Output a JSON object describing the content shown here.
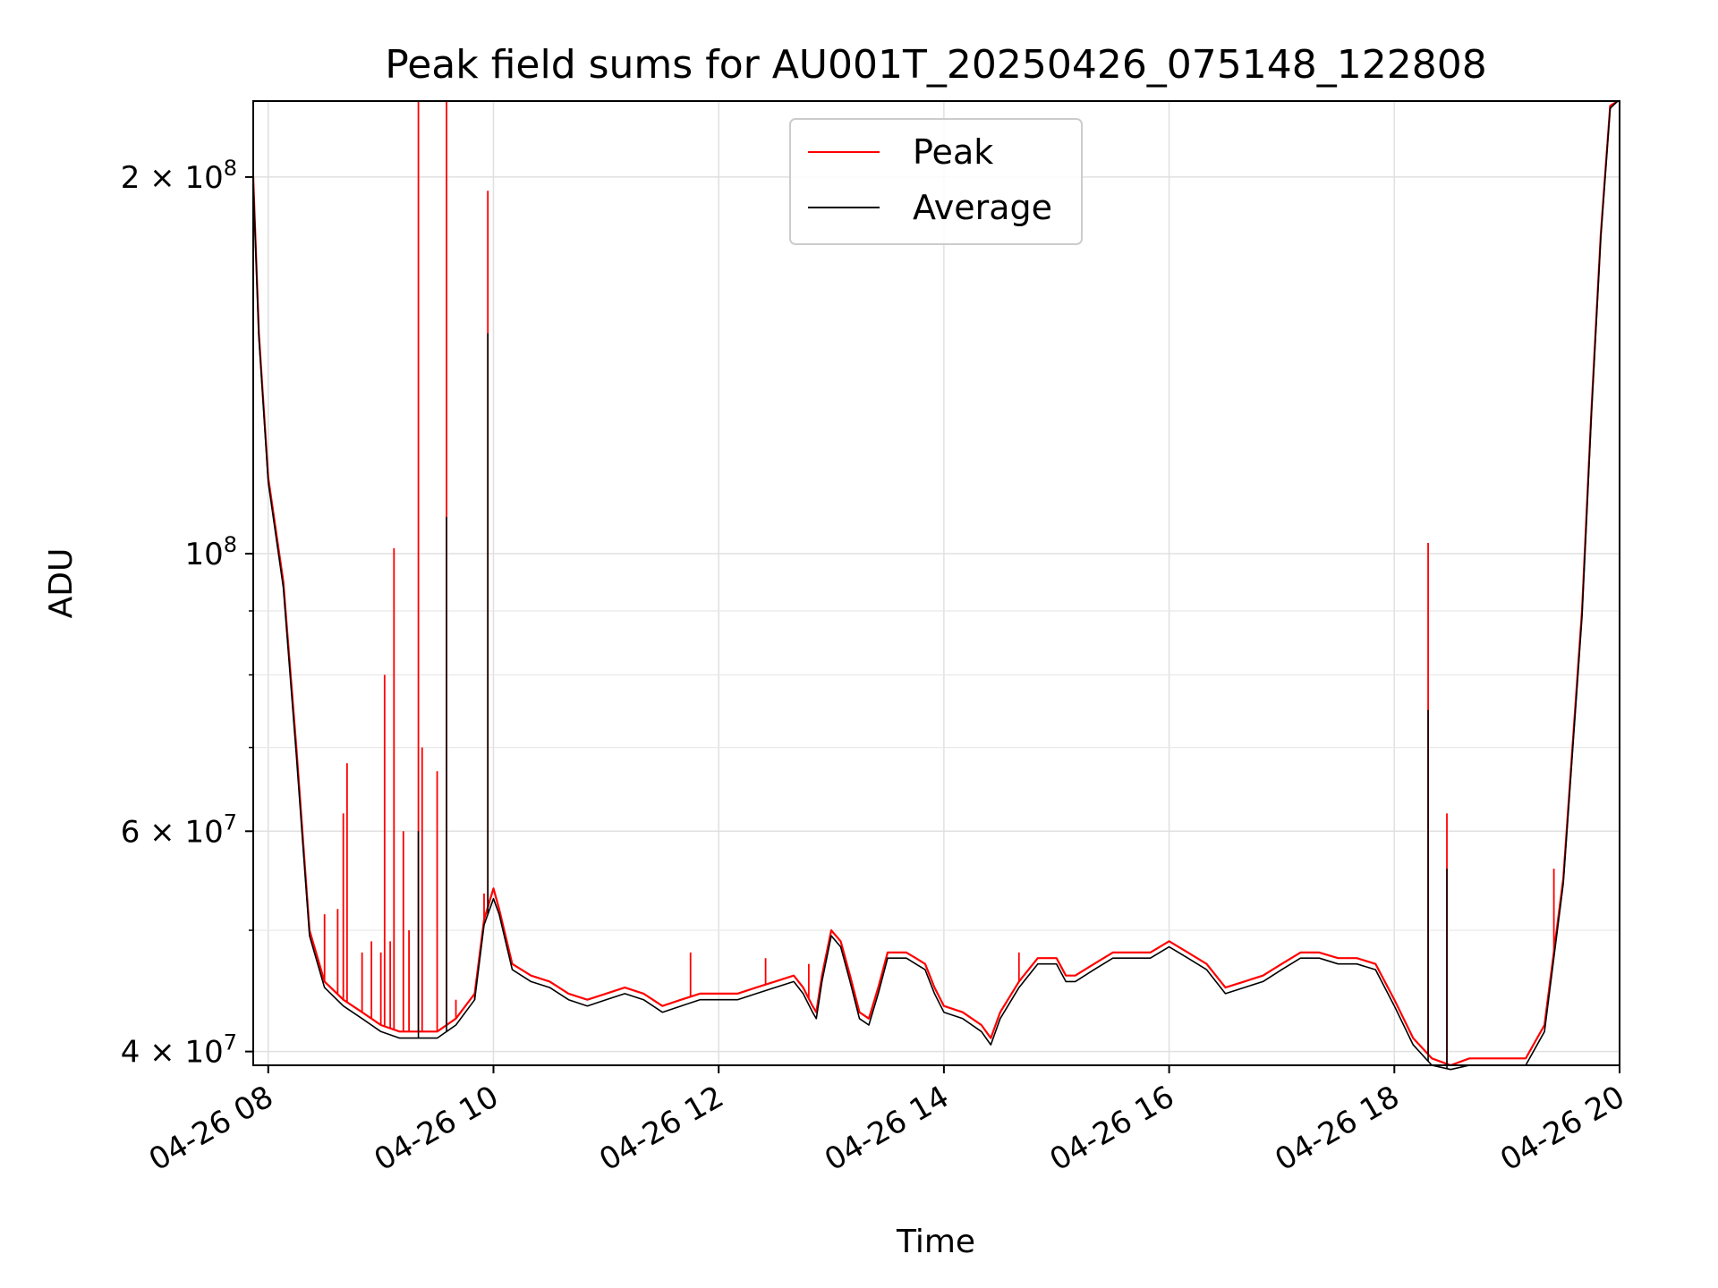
{
  "chart_data": {
    "type": "line",
    "title": "Peak field sums for AU001T_20250426_075148_122808",
    "xlabel": "Time",
    "ylabel": "ADU",
    "y_scale": "log",
    "grid": true,
    "legend_position": "top-center",
    "xlim": [
      "04-26 07:52",
      "04-26 20:00"
    ],
    "ylim": [
      39000000,
      230000000
    ],
    "x_ticks": [
      "04-26 08",
      "04-26 10",
      "04-26 12",
      "04-26 14",
      "04-26 16",
      "04-26 18",
      "04-26 20"
    ],
    "y_ticks": [
      {
        "value": 40000000,
        "label": "4 × 10^7"
      },
      {
        "value": 60000000,
        "label": "6 × 10^7"
      },
      {
        "value": 100000000,
        "label": "10^8"
      },
      {
        "value": 200000000,
        "label": "2 × 10^8"
      }
    ],
    "series": [
      {
        "name": "Peak",
        "color": "#ff0000",
        "points": [
          [
            "07:52",
            200000000
          ],
          [
            "07:55",
            150000000
          ],
          [
            "08:00",
            115000000
          ],
          [
            "08:08",
            95000000
          ],
          [
            "08:15",
            70000000
          ],
          [
            "08:22",
            50000000
          ],
          [
            "08:30",
            45500000
          ],
          [
            "08:40",
            44000000
          ],
          [
            "08:50",
            43000000
          ],
          [
            "09:00",
            42000000
          ],
          [
            "09:10",
            41500000
          ],
          [
            "09:20",
            41500000
          ],
          [
            "09:30",
            41500000
          ],
          [
            "09:40",
            42500000
          ],
          [
            "09:50",
            44500000
          ],
          [
            "09:55",
            51000000
          ],
          [
            "10:00",
            54000000
          ],
          [
            "10:03",
            52000000
          ],
          [
            "10:10",
            47000000
          ],
          [
            "10:20",
            46000000
          ],
          [
            "10:30",
            45500000
          ],
          [
            "10:40",
            44500000
          ],
          [
            "10:50",
            44000000
          ],
          [
            "11:00",
            44500000
          ],
          [
            "11:10",
            45000000
          ],
          [
            "11:20",
            44500000
          ],
          [
            "11:30",
            43500000
          ],
          [
            "11:40",
            44000000
          ],
          [
            "11:50",
            44500000
          ],
          [
            "12:00",
            44500000
          ],
          [
            "12:10",
            44500000
          ],
          [
            "12:20",
            45000000
          ],
          [
            "12:30",
            45500000
          ],
          [
            "12:40",
            46000000
          ],
          [
            "12:45",
            45000000
          ],
          [
            "12:50",
            43500000
          ],
          [
            "12:52",
            43000000
          ],
          [
            "12:55",
            46000000
          ],
          [
            "13:00",
            50000000
          ],
          [
            "13:05",
            49000000
          ],
          [
            "13:10",
            46000000
          ],
          [
            "13:15",
            43000000
          ],
          [
            "13:20",
            42500000
          ],
          [
            "13:25",
            45000000
          ],
          [
            "13:30",
            48000000
          ],
          [
            "13:40",
            48000000
          ],
          [
            "13:45",
            47500000
          ],
          [
            "13:50",
            47000000
          ],
          [
            "13:55",
            45000000
          ],
          [
            "14:00",
            43500000
          ],
          [
            "14:10",
            43000000
          ],
          [
            "14:20",
            42000000
          ],
          [
            "14:25",
            41000000
          ],
          [
            "14:30",
            43000000
          ],
          [
            "14:40",
            45500000
          ],
          [
            "14:50",
            47500000
          ],
          [
            "15:00",
            47500000
          ],
          [
            "15:05",
            46000000
          ],
          [
            "15:10",
            46000000
          ],
          [
            "15:20",
            47000000
          ],
          [
            "15:30",
            48000000
          ],
          [
            "15:40",
            48000000
          ],
          [
            "15:50",
            48000000
          ],
          [
            "16:00",
            49000000
          ],
          [
            "16:10",
            48000000
          ],
          [
            "16:20",
            47000000
          ],
          [
            "16:30",
            45000000
          ],
          [
            "16:40",
            45500000
          ],
          [
            "16:50",
            46000000
          ],
          [
            "17:00",
            47000000
          ],
          [
            "17:10",
            48000000
          ],
          [
            "17:20",
            48000000
          ],
          [
            "17:30",
            47500000
          ],
          [
            "17:40",
            47500000
          ],
          [
            "17:50",
            47000000
          ],
          [
            "18:00",
            44000000
          ],
          [
            "18:10",
            41000000
          ],
          [
            "18:20",
            39500000
          ],
          [
            "18:30",
            39000000
          ],
          [
            "18:40",
            39500000
          ],
          [
            "18:50",
            39500000
          ],
          [
            "19:00",
            39500000
          ],
          [
            "19:10",
            39500000
          ],
          [
            "19:20",
            42000000
          ],
          [
            "19:30",
            55000000
          ],
          [
            "19:40",
            90000000
          ],
          [
            "19:45",
            130000000
          ],
          [
            "19:50",
            180000000
          ],
          [
            "19:55",
            228000000
          ],
          [
            "19:59",
            230000000
          ]
        ],
        "spikes": [
          [
            "08:30",
            51500000
          ],
          [
            "08:37",
            52000000
          ],
          [
            "08:40",
            62000000
          ],
          [
            "08:42",
            68000000
          ],
          [
            "08:50",
            48000000
          ],
          [
            "08:55",
            49000000
          ],
          [
            "09:00",
            48000000
          ],
          [
            "09:02",
            80000000
          ],
          [
            "09:05",
            49000000
          ],
          [
            "09:07",
            101000000
          ],
          [
            "09:12",
            60000000
          ],
          [
            "09:15",
            50000000
          ],
          [
            "09:20",
            230000000
          ],
          [
            "09:22",
            70000000
          ],
          [
            "09:30",
            67000000
          ],
          [
            "09:35",
            230000000
          ],
          [
            "09:40",
            44000000
          ],
          [
            "09:50",
            44000000
          ],
          [
            "09:55",
            53500000
          ],
          [
            "09:57",
            195000000
          ],
          [
            "11:45",
            48000000
          ],
          [
            "12:25",
            47500000
          ],
          [
            "12:48",
            47000000
          ],
          [
            "14:40",
            48000000
          ],
          [
            "18:18",
            102000000
          ],
          [
            "18:28",
            62000000
          ],
          [
            "19:25",
            56000000
          ]
        ]
      },
      {
        "name": "Average",
        "color": "#000000",
        "points": [
          [
            "07:52",
            198000000
          ],
          [
            "07:55",
            149000000
          ],
          [
            "08:00",
            114000000
          ],
          [
            "08:08",
            94000000
          ],
          [
            "08:15",
            69000000
          ],
          [
            "08:22",
            49500000
          ],
          [
            "08:30",
            45000000
          ],
          [
            "08:40",
            43500000
          ],
          [
            "08:50",
            42500000
          ],
          [
            "09:00",
            41500000
          ],
          [
            "09:10",
            41000000
          ],
          [
            "09:20",
            41000000
          ],
          [
            "09:30",
            41000000
          ],
          [
            "09:40",
            42000000
          ],
          [
            "09:50",
            44000000
          ],
          [
            "09:55",
            50500000
          ],
          [
            "10:00",
            53000000
          ],
          [
            "10:03",
            51500000
          ],
          [
            "10:10",
            46500000
          ],
          [
            "10:20",
            45500000
          ],
          [
            "10:30",
            45000000
          ],
          [
            "10:40",
            44000000
          ],
          [
            "10:50",
            43500000
          ],
          [
            "11:00",
            44000000
          ],
          [
            "11:10",
            44500000
          ],
          [
            "11:20",
            44000000
          ],
          [
            "11:30",
            43000000
          ],
          [
            "11:40",
            43500000
          ],
          [
            "11:50",
            44000000
          ],
          [
            "12:00",
            44000000
          ],
          [
            "12:10",
            44000000
          ],
          [
            "12:20",
            44500000
          ],
          [
            "12:30",
            45000000
          ],
          [
            "12:40",
            45500000
          ],
          [
            "12:45",
            44500000
          ],
          [
            "12:50",
            43000000
          ],
          [
            "12:52",
            42500000
          ],
          [
            "12:55",
            45500000
          ],
          [
            "13:00",
            49500000
          ],
          [
            "13:05",
            48500000
          ],
          [
            "13:10",
            45500000
          ],
          [
            "13:15",
            42500000
          ],
          [
            "13:20",
            42000000
          ],
          [
            "13:25",
            44500000
          ],
          [
            "13:30",
            47500000
          ],
          [
            "13:40",
            47500000
          ],
          [
            "13:45",
            47000000
          ],
          [
            "13:50",
            46500000
          ],
          [
            "13:55",
            44500000
          ],
          [
            "14:00",
            43000000
          ],
          [
            "14:10",
            42500000
          ],
          [
            "14:20",
            41500000
          ],
          [
            "14:25",
            40500000
          ],
          [
            "14:30",
            42500000
          ],
          [
            "14:40",
            45000000
          ],
          [
            "14:50",
            47000000
          ],
          [
            "15:00",
            47000000
          ],
          [
            "15:05",
            45500000
          ],
          [
            "15:10",
            45500000
          ],
          [
            "15:20",
            46500000
          ],
          [
            "15:30",
            47500000
          ],
          [
            "15:40",
            47500000
          ],
          [
            "15:50",
            47500000
          ],
          [
            "16:00",
            48500000
          ],
          [
            "16:10",
            47500000
          ],
          [
            "16:20",
            46500000
          ],
          [
            "16:30",
            44500000
          ],
          [
            "16:40",
            45000000
          ],
          [
            "16:50",
            45500000
          ],
          [
            "17:00",
            46500000
          ],
          [
            "17:10",
            47500000
          ],
          [
            "17:20",
            47500000
          ],
          [
            "17:30",
            47000000
          ],
          [
            "17:40",
            47000000
          ],
          [
            "17:50",
            46500000
          ],
          [
            "18:00",
            43500000
          ],
          [
            "18:10",
            40500000
          ],
          [
            "18:20",
            39000000
          ],
          [
            "18:30",
            38700000
          ],
          [
            "18:40",
            39000000
          ],
          [
            "18:50",
            39000000
          ],
          [
            "19:00",
            39000000
          ],
          [
            "19:10",
            39000000
          ],
          [
            "19:20",
            41500000
          ],
          [
            "19:30",
            54500000
          ],
          [
            "19:40",
            89000000
          ],
          [
            "19:45",
            129000000
          ],
          [
            "19:50",
            179000000
          ],
          [
            "19:55",
            227000000
          ],
          [
            "19:59",
            230000000
          ]
        ],
        "spikes": [
          [
            "09:20",
            60000000
          ],
          [
            "09:35",
            107000000
          ],
          [
            "09:57",
            150000000
          ],
          [
            "18:18",
            75000000
          ],
          [
            "18:28",
            56000000
          ]
        ]
      }
    ]
  }
}
